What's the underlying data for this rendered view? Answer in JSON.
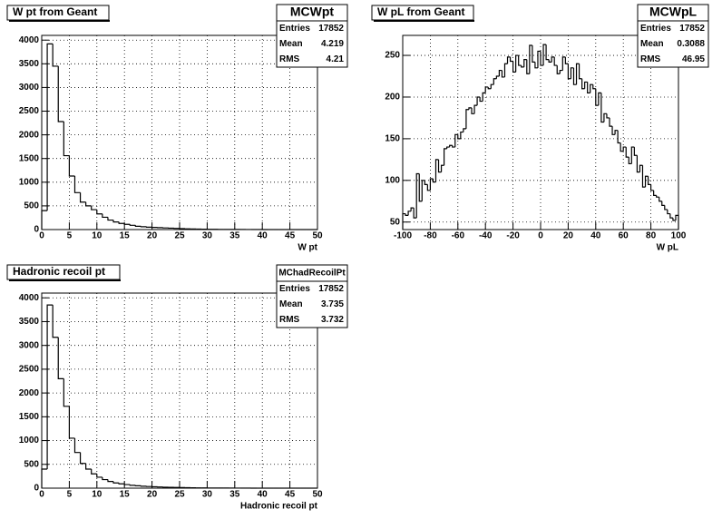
{
  "chart_data": [
    {
      "type": "histogram",
      "title": "W pt from Geant",
      "x_label": "W pt",
      "stats": {
        "name": "MCWpt",
        "rows": [
          {
            "label": "Entries",
            "value": 17852
          },
          {
            "label": "Mean",
            "value": 4.219
          },
          {
            "label": "RMS",
            "value": 4.21
          }
        ]
      },
      "bins": [
        0,
        1,
        2,
        3,
        4,
        5,
        6,
        7,
        8,
        9,
        10,
        11,
        12,
        13,
        14,
        15,
        16,
        17,
        18,
        19,
        20,
        21,
        22,
        23,
        24,
        25,
        26,
        27,
        28,
        29,
        30,
        31,
        32,
        33,
        34,
        35,
        36,
        37,
        38,
        39,
        40,
        41,
        42,
        43,
        44,
        45,
        46,
        47,
        48,
        49,
        50
      ],
      "values": [
        400,
        3920,
        3450,
        2280,
        1560,
        1130,
        780,
        580,
        500,
        420,
        330,
        260,
        200,
        160,
        130,
        110,
        90,
        70,
        60,
        50,
        45,
        40,
        35,
        30,
        25,
        20,
        15,
        12,
        10,
        8,
        6,
        5,
        4,
        3,
        3,
        2,
        2,
        1,
        1,
        1,
        0,
        0,
        0,
        0,
        0,
        0,
        0,
        0,
        0,
        0
      ],
      "xlim": [
        0,
        50
      ],
      "xticks": [
        0,
        5,
        10,
        15,
        20,
        25,
        30,
        35,
        40,
        45,
        50
      ],
      "ylim": [
        0,
        4100
      ],
      "yticks": [
        0,
        500,
        1000,
        1500,
        2000,
        2500,
        3000,
        3500,
        4000
      ],
      "grid": true,
      "color": "#000000"
    },
    {
      "type": "histogram",
      "title": "W pL from Geant",
      "x_label": "W pL",
      "stats": {
        "name": "MCWpL",
        "rows": [
          {
            "label": "Entries",
            "value": 17852
          },
          {
            "label": "Mean",
            "value": 0.3088
          },
          {
            "label": "RMS",
            "value": 46.95
          }
        ]
      },
      "bins": [
        -100,
        -98,
        -96,
        -94,
        -92,
        -90,
        -88,
        -86,
        -84,
        -82,
        -80,
        -78,
        -76,
        -74,
        -72,
        -70,
        -68,
        -66,
        -64,
        -62,
        -60,
        -58,
        -56,
        -54,
        -52,
        -50,
        -48,
        -46,
        -44,
        -42,
        -40,
        -38,
        -36,
        -34,
        -32,
        -30,
        -28,
        -26,
        -24,
        -22,
        -20,
        -18,
        -16,
        -14,
        -12,
        -10,
        -8,
        -6,
        -4,
        -2,
        0,
        2,
        4,
        6,
        8,
        10,
        12,
        14,
        16,
        18,
        20,
        22,
        24,
        26,
        28,
        30,
        32,
        34,
        36,
        38,
        40,
        42,
        44,
        46,
        48,
        50,
        52,
        54,
        56,
        58,
        60,
        62,
        64,
        66,
        68,
        70,
        72,
        74,
        76,
        78,
        80,
        82,
        84,
        86,
        88,
        90,
        92,
        94,
        96,
        98,
        100
      ],
      "values": [
        60,
        58,
        63,
        67,
        55,
        108,
        75,
        100,
        95,
        88,
        102,
        98,
        125,
        110,
        118,
        138,
        140,
        142,
        140,
        155,
        150,
        158,
        162,
        185,
        187,
        180,
        190,
        200,
        195,
        205,
        212,
        210,
        215,
        222,
        225,
        232,
        224,
        240,
        248,
        243,
        230,
        250,
        238,
        236,
        245,
        228,
        262,
        242,
        235,
        255,
        238,
        263,
        245,
        242,
        248,
        238,
        228,
        232,
        248,
        240,
        222,
        235,
        215,
        240,
        222,
        210,
        218,
        205,
        215,
        210,
        190,
        205,
        170,
        180,
        175,
        165,
        155,
        160,
        145,
        135,
        140,
        128,
        120,
        140,
        130,
        110,
        118,
        92,
        105,
        95,
        88,
        82,
        80,
        75,
        70,
        65,
        60,
        55,
        52,
        58
      ],
      "xlim": [
        -100,
        100
      ],
      "xticks": [
        -100,
        -80,
        -60,
        -40,
        -20,
        0,
        20,
        40,
        60,
        80,
        100
      ],
      "ylim": [
        41,
        274
      ],
      "yticks": [
        50,
        100,
        150,
        200,
        250
      ],
      "grid": true,
      "color": "#000000"
    },
    {
      "type": "histogram",
      "title": "Hadronic recoil pt",
      "x_label": "Hadronic recoil pt",
      "stats": {
        "name": "MChadRecoilPt",
        "rows": [
          {
            "label": "Entries",
            "value": 17852
          },
          {
            "label": "Mean",
            "value": 3.735
          },
          {
            "label": "RMS",
            "value": 3.732
          }
        ]
      },
      "bins": [
        0,
        1,
        2,
        3,
        4,
        5,
        6,
        7,
        8,
        9,
        10,
        11,
        12,
        13,
        14,
        15,
        16,
        17,
        18,
        19,
        20,
        21,
        22,
        23,
        24,
        25,
        26,
        27,
        28,
        29,
        30,
        31,
        32,
        33,
        34,
        35,
        36,
        37,
        38,
        39,
        40,
        41,
        42,
        43,
        44,
        45,
        46,
        47,
        48,
        49,
        50
      ],
      "values": [
        400,
        3850,
        3170,
        2300,
        1720,
        1050,
        750,
        520,
        400,
        300,
        230,
        180,
        140,
        110,
        90,
        75,
        60,
        50,
        40,
        35,
        30,
        25,
        20,
        18,
        15,
        12,
        10,
        8,
        6,
        5,
        4,
        3,
        3,
        2,
        2,
        1,
        1,
        1,
        0,
        0,
        0,
        0,
        0,
        0,
        0,
        0,
        0,
        0,
        0,
        0
      ],
      "xlim": [
        0,
        50
      ],
      "xticks": [
        0,
        5,
        10,
        15,
        20,
        25,
        30,
        35,
        40,
        45,
        50
      ],
      "ylim": [
        0,
        4100
      ],
      "yticks": [
        0,
        500,
        1000,
        1500,
        2000,
        2500,
        3000,
        3500,
        4000
      ],
      "grid": true,
      "color": "#000000"
    }
  ]
}
